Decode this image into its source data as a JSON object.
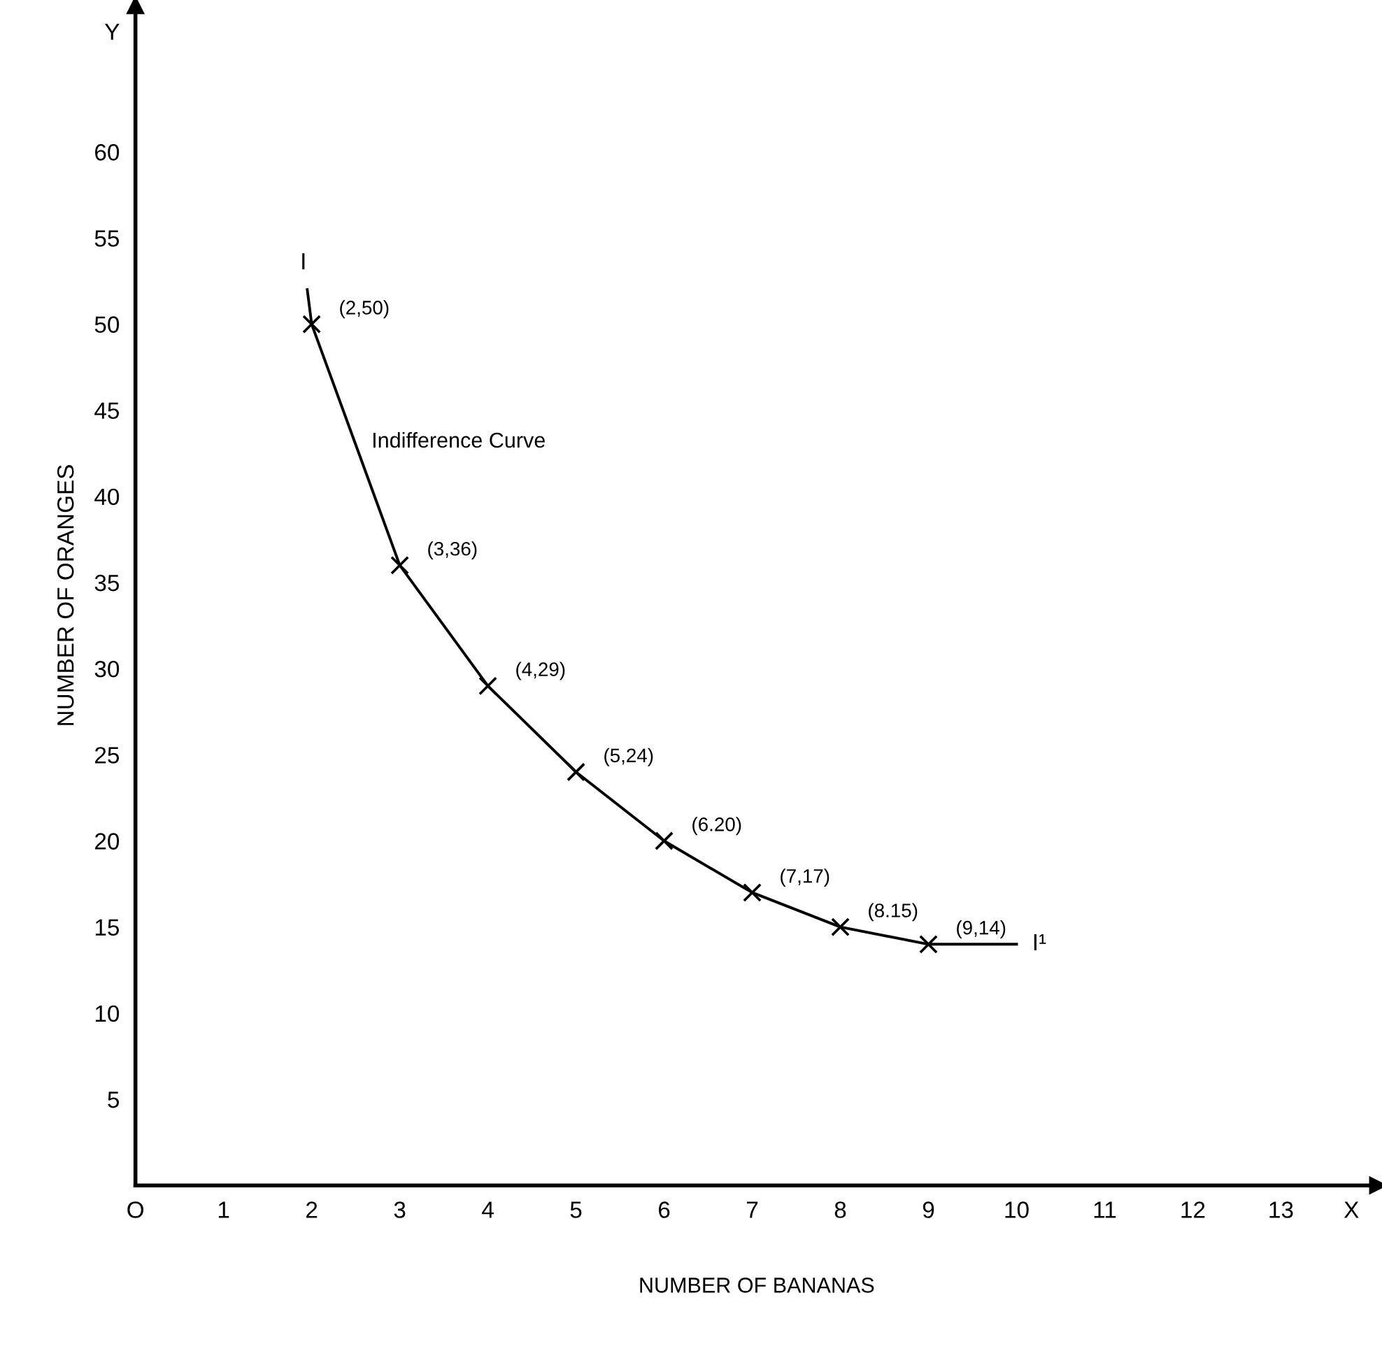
{
  "chart_data": {
    "type": "line",
    "xlabel": "NUMBER OF BANANAS",
    "ylabel": "NUMBER OF ORANGES",
    "xlim": [
      0,
      14.1
    ],
    "ylim": [
      0,
      68.5
    ],
    "xticks": [
      {
        "value": 0,
        "label": "O"
      },
      1,
      2,
      3,
      4,
      5,
      6,
      7,
      8,
      9,
      10,
      11,
      12,
      13,
      {
        "value": 13.8,
        "label": "X"
      }
    ],
    "yticks": [
      5,
      10,
      15,
      20,
      25,
      30,
      35,
      40,
      45,
      50,
      55,
      60,
      {
        "value": 67,
        "label": "Y"
      }
    ],
    "grid": false,
    "series": [
      {
        "color": "#000000",
        "marker": "none",
        "x": [
          1.95,
          2,
          3,
          4,
          5,
          6,
          7,
          8,
          9,
          9.5,
          10
        ],
        "values": [
          52,
          50,
          36,
          29,
          24,
          20,
          17,
          15,
          14,
          14,
          14
        ]
      },
      {
        "type": "scatter",
        "color": "#000000",
        "marker": "cross",
        "x": [
          2,
          3,
          4,
          5,
          6,
          7,
          8,
          9
        ],
        "values": [
          50,
          36,
          29,
          24,
          20,
          17,
          15,
          14
        ]
      }
    ],
    "annotations": [
      {
        "text": "(2,50)",
        "x": 2,
        "y": 50
      },
      {
        "text": "(3,36)",
        "x": 3,
        "y": 36
      },
      {
        "text": "(4,29)",
        "x": 4,
        "y": 29
      },
      {
        "text": "(5,24)",
        "x": 5,
        "y": 24
      },
      {
        "text": "(6.20)",
        "x": 6,
        "y": 20
      },
      {
        "text": "(7,17)",
        "x": 7,
        "y": 17
      },
      {
        "text": "(8.15)",
        "x": 8,
        "y": 15
      },
      {
        "text": "(9,14)",
        "x": 9,
        "y": 14
      },
      {
        "text": "I",
        "x": 1.95,
        "y": 52
      },
      {
        "text": "I¹",
        "x": 10,
        "y": 14
      },
      "Indifference Curve"
    ]
  }
}
